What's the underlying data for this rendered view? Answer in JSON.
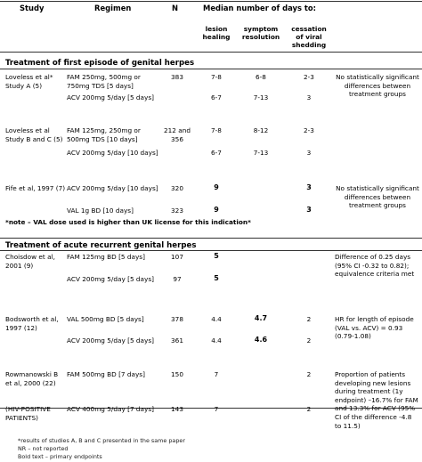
{
  "header": {
    "study": "Study",
    "regimen": "Regimen",
    "n": "N",
    "median": "Median number of days to:",
    "lesion": "lesion healing",
    "symptom": "symptom resolution",
    "cessation": "cessation of viral shedding"
  },
  "sections": {
    "first": "Treatment of first episode of genital herpes",
    "recurrent": "Treatment of acute recurrent genital herpes"
  },
  "first_note": "*note – VAL dose used is higher than UK license for this indication*",
  "rows": [
    {
      "study": "Loveless et al* Study A (5)",
      "reg1": "FAM 250mg, 500mg or 750mg TDS [5 days]",
      "n1": "383",
      "l1": "7-8",
      "s1": "6-8",
      "c1": "2-3",
      "reg2": "ACV 200mg 5/day [5 days]",
      "n2": "",
      "l2": "6-7",
      "s2": "7-13",
      "c2": "3",
      "comment": "No statistically significant differences between treatment groups"
    },
    {
      "study": "Loveless et al Study B and C (5)",
      "reg1": "FAM 125mg, 250mg or 500mg TDS [10 days]",
      "n1": "212 and 356",
      "l1": "7-8",
      "s1": "8-12",
      "c1": "2-3",
      "reg2": "ACV 200mg 5/day [10 days]",
      "n2": "",
      "l2": "6-7",
      "s2": "7-13",
      "c2": "3",
      "comment": ""
    },
    {
      "study": "Fife et al, 1997 (7)",
      "reg1": "ACV 200mg 5/day [10 days]",
      "n1": "320",
      "l1": "9",
      "s1": "",
      "c1": "3",
      "reg2": "VAL 1g BD [10 days]",
      "n2": "323",
      "l2": "9",
      "s2": "",
      "c2": "3",
      "comment": "No statistically significant differences between treatment groups"
    },
    {
      "study": "Choisdow et al, 2001 (9)",
      "reg1": "FAM 125mg BD [5 days]",
      "n1": "107",
      "l1": "5",
      "s1": "",
      "c1": "",
      "reg2": "ACV 200mg 5/day [5 days]",
      "n2": "97",
      "l2": "5",
      "s2": "",
      "c2": "",
      "comment": "Difference of 0.25 days (95% CI -0.32 to 0.82); equivalence criteria met"
    },
    {
      "study": "Bodsworth et al, 1997 (12)",
      "reg1": "VAL 500mg BD [5 days]",
      "n1": "378",
      "l1": "4.4",
      "s1": "4.7",
      "c1": "2",
      "reg2": "ACV 200mg 5/day [5 days]",
      "n2": "361",
      "l2": "4.4",
      "s2": "4.6",
      "c2": "2",
      "comment": "HR for length of episode (VAL vs. ACV) = 0.93 (0.79-1.08)"
    },
    {
      "study": "Rowmanowski B et al, 2000 (22)",
      "study2": "(HIV-POSITIVE PATIENTS)",
      "reg1": "FAM 500mg BD [7 days]",
      "n1": "150",
      "l1": "7",
      "s1": "",
      "c1": "2",
      "reg2": "ACV 400mg 5/day [7 days]",
      "n2": "143",
      "l2": "7",
      "s2": "",
      "c2": "2",
      "comment": "Proportion of patients developing new lesions during treatment (1y endpoint) –16.7% for FAM and 13.3% for ACV (95% CI of the difference -4.8 to 11.5)"
    }
  ],
  "footnotes": [
    "*results of studies A, B and C presented in the same paper",
    "NR – not reported",
    "Bold text – primary endpoints"
  ]
}
